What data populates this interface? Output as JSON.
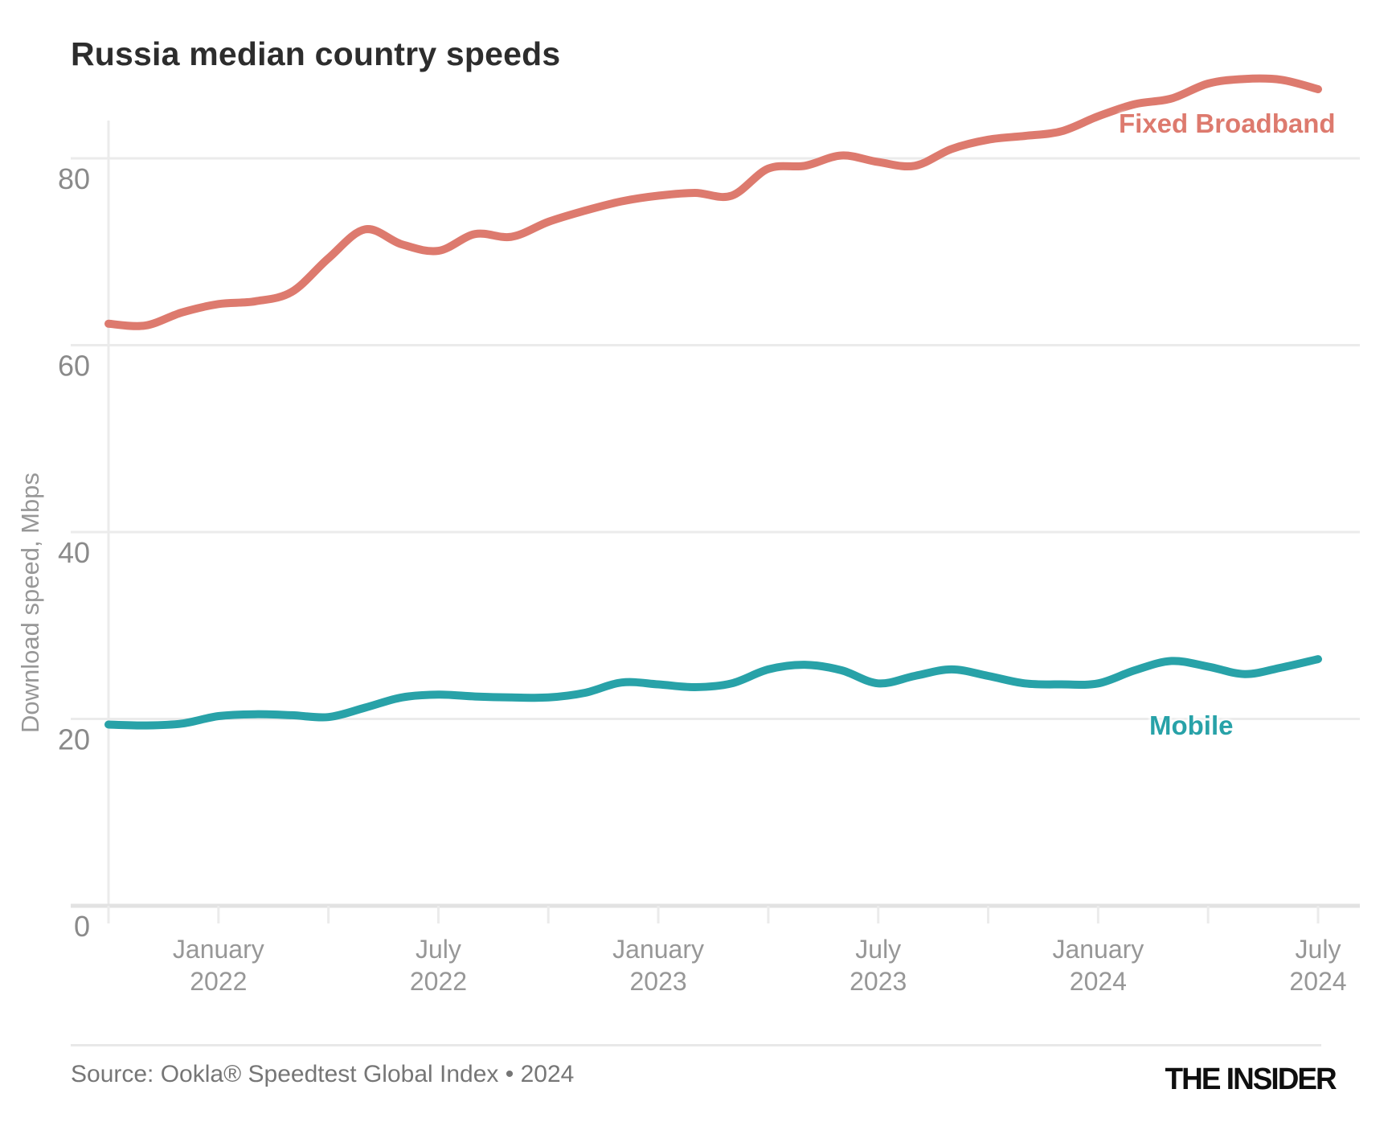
{
  "chart_data": {
    "type": "line",
    "title": "Russia median country speeds",
    "ylabel": "Download speed, Mbps",
    "ylim": [
      0,
      90
    ],
    "yticks": [
      0,
      20,
      40,
      60,
      80
    ],
    "grid": "horizontal",
    "legend_position": "inline-labels-on-lines",
    "x_tick_interval_months": 3,
    "labeled_x_ticks": [
      [
        "January",
        "2022"
      ],
      [
        "July",
        "2022"
      ],
      [
        "January",
        "2023"
      ],
      [
        "July",
        "2023"
      ],
      [
        "January",
        "2024"
      ],
      [
        "July",
        "2024"
      ]
    ],
    "x": [
      "October 2021",
      "November 2021",
      "December 2021",
      "January 2022",
      "February 2022",
      "March 2022",
      "April 2022",
      "May 2022",
      "June 2022",
      "July 2022",
      "August 2022",
      "September 2022",
      "October 2022",
      "November 2022",
      "December 2022",
      "January 2023",
      "February 2023",
      "March 2023",
      "April 2023",
      "May 2023",
      "June 2023",
      "July 2023",
      "August 2023",
      "September 2023",
      "October 2023",
      "November 2023",
      "December 2023",
      "January 2024",
      "February 2024",
      "March 2024",
      "April 2024",
      "May 2024",
      "June 2024",
      "July 2024"
    ],
    "series": [
      {
        "name": "Fixed Broadband",
        "color": "#dd7a6e",
        "values": [
          62.3,
          62.1,
          63.5,
          64.4,
          64.7,
          65.7,
          69.3,
          72.4,
          70.8,
          70.1,
          71.9,
          71.6,
          73.2,
          74.4,
          75.4,
          76.0,
          76.3,
          76.0,
          78.9,
          79.2,
          80.3,
          79.6,
          79.2,
          81.0,
          82.0,
          82.4,
          82.9,
          84.5,
          85.8,
          86.4,
          88.0,
          88.5,
          88.4,
          87.4
        ]
      },
      {
        "name": "Mobile",
        "color": "#28a2a8",
        "values": [
          19.4,
          19.3,
          19.5,
          20.3,
          20.5,
          20.4,
          20.2,
          21.2,
          22.3,
          22.6,
          22.4,
          22.3,
          22.3,
          22.8,
          23.9,
          23.7,
          23.4,
          23.8,
          25.3,
          25.8,
          25.2,
          23.8,
          24.6,
          25.3,
          24.6,
          23.8,
          23.7,
          23.8,
          25.2,
          26.2,
          25.6,
          24.8,
          25.5,
          26.4
        ]
      }
    ]
  },
  "footer": {
    "source": "Source: Ookla® Speedtest Global Index • 2024",
    "logo": "THE INSIDER"
  },
  "style": {
    "grid_color": "#ebebeb",
    "baseline_color": "#e2e2e2",
    "axis_text_color": "#979797",
    "title_color": "#2d2d2d"
  }
}
